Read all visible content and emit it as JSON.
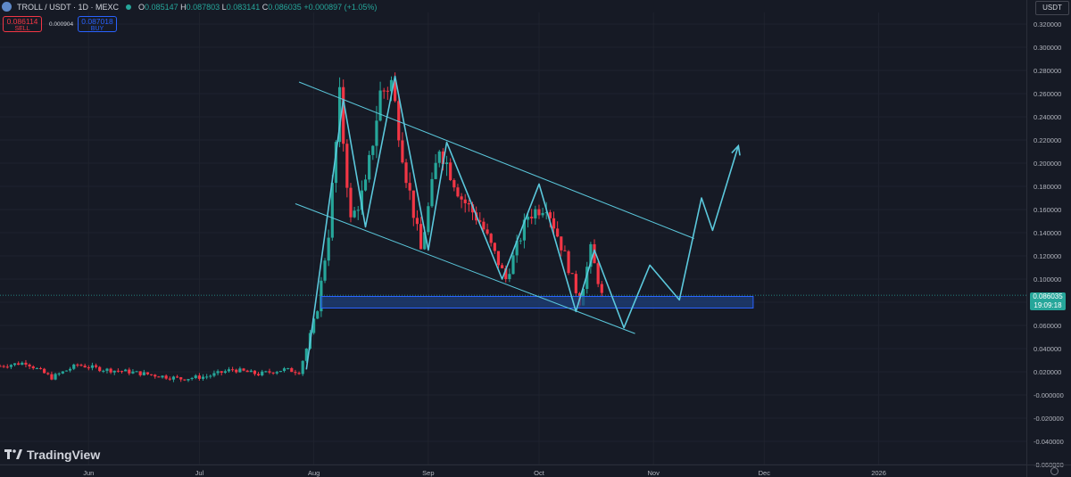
{
  "header": {
    "symbol": "TROLL / USDT · 1D · MEXC",
    "o_label": "O",
    "o": "0.085147",
    "h_label": "H",
    "h": "0.087803",
    "l_label": "L",
    "l": "0.083141",
    "c_label": "C",
    "c": "0.086035",
    "change": "+0.000897 (+1.05%)"
  },
  "trade": {
    "sell_price": "0.086114",
    "sell_label": "SELL",
    "spread": "0.000904",
    "buy_price": "0.087018",
    "buy_label": "BUY"
  },
  "currency": "USDT",
  "brand": "TradingView",
  "last_price": {
    "price": "0.086035",
    "countdown": "19:09:18"
  },
  "colors": {
    "up": "#26a69a",
    "down": "#f23645",
    "drawing": "#5bc8dc",
    "zone_fill": "#1e3f7a",
    "zone_border": "#2962ff",
    "background": "#161a25",
    "grid": "#1f232e"
  },
  "chart_data": {
    "type": "candlestick",
    "ylim": [
      -0.06,
      0.33
    ],
    "yticks": [
      "0.320000",
      "0.300000",
      "0.280000",
      "0.260000",
      "0.240000",
      "0.220000",
      "0.200000",
      "0.180000",
      "0.160000",
      "0.140000",
      "0.120000",
      "0.100000",
      "0.080000",
      "0.060000",
      "0.040000",
      "0.020000",
      "-0.000000",
      "-0.020000",
      "-0.040000",
      "-0.060000"
    ],
    "xticks": [
      "Jun",
      "Jul",
      "Aug",
      "Sep",
      "Oct",
      "Nov",
      "Dec",
      "2026"
    ],
    "x_start": "2025-05-08",
    "x_end": "2026-02-10",
    "candles_summary": [
      {
        "date": "2025-05-08",
        "c": 0.025
      },
      {
        "date": "2025-05-15",
        "c": 0.028
      },
      {
        "date": "2025-05-22",
        "c": 0.015
      },
      {
        "date": "2025-05-29",
        "c": 0.026
      },
      {
        "date": "2025-06-05",
        "c": 0.022
      },
      {
        "date": "2025-06-12",
        "c": 0.02
      },
      {
        "date": "2025-06-19",
        "c": 0.017
      },
      {
        "date": "2025-06-26",
        "c": 0.014
      },
      {
        "date": "2025-07-03",
        "c": 0.016
      },
      {
        "date": "2025-07-10",
        "c": 0.022
      },
      {
        "date": "2025-07-17",
        "c": 0.018
      },
      {
        "date": "2025-07-24",
        "c": 0.022
      },
      {
        "date": "2025-07-28",
        "c": 0.02
      },
      {
        "date": "2025-07-30",
        "c": 0.04
      },
      {
        "date": "2025-08-02",
        "c": 0.075
      },
      {
        "date": "2025-08-05",
        "c": 0.14
      },
      {
        "date": "2025-08-08",
        "c": 0.255
      },
      {
        "date": "2025-08-11",
        "c": 0.15
      },
      {
        "date": "2025-08-15",
        "c": 0.18
      },
      {
        "date": "2025-08-19",
        "c": 0.26
      },
      {
        "date": "2025-08-22",
        "c": 0.27
      },
      {
        "date": "2025-08-26",
        "c": 0.19
      },
      {
        "date": "2025-08-30",
        "c": 0.125
      },
      {
        "date": "2025-09-04",
        "c": 0.215
      },
      {
        "date": "2025-09-10",
        "c": 0.17
      },
      {
        "date": "2025-09-15",
        "c": 0.15
      },
      {
        "date": "2025-09-22",
        "c": 0.1
      },
      {
        "date": "2025-09-28",
        "c": 0.155
      },
      {
        "date": "2025-10-03",
        "c": 0.165
      },
      {
        "date": "2025-10-08",
        "c": 0.12
      },
      {
        "date": "2025-10-12",
        "c": 0.08
      },
      {
        "date": "2025-10-15",
        "c": 0.125
      },
      {
        "date": "2025-10-18",
        "c": 0.086
      }
    ],
    "support_zone": {
      "y_low": 0.075,
      "y_high": 0.085,
      "x_start": "2025-08-03",
      "x_end": "2025-11-28"
    },
    "channel_upper": [
      {
        "x": "2025-07-28",
        "y": 0.27
      },
      {
        "x": "2025-11-12",
        "y": 0.135
      }
    ],
    "channel_lower": [
      {
        "x": "2025-07-27",
        "y": 0.165
      },
      {
        "x": "2025-10-27",
        "y": 0.053
      }
    ],
    "wave_path": [
      {
        "x": "2025-07-30",
        "y": 0.022
      },
      {
        "x": "2025-08-09",
        "y": 0.255
      },
      {
        "x": "2025-08-15",
        "y": 0.145
      },
      {
        "x": "2025-08-23",
        "y": 0.275
      },
      {
        "x": "2025-09-01",
        "y": 0.125
      },
      {
        "x": "2025-09-06",
        "y": 0.218
      },
      {
        "x": "2025-09-21",
        "y": 0.1
      },
      {
        "x": "2025-10-01",
        "y": 0.182
      },
      {
        "x": "2025-10-11",
        "y": 0.072
      },
      {
        "x": "2025-10-16",
        "y": 0.125
      },
      {
        "x": "2025-10-24",
        "y": 0.058
      },
      {
        "x": "2025-10-31",
        "y": 0.112
      },
      {
        "x": "2025-11-08",
        "y": 0.082
      },
      {
        "x": "2025-11-14",
        "y": 0.17
      },
      {
        "x": "2025-11-17",
        "y": 0.142
      },
      {
        "x": "2025-11-24",
        "y": 0.215
      }
    ]
  }
}
